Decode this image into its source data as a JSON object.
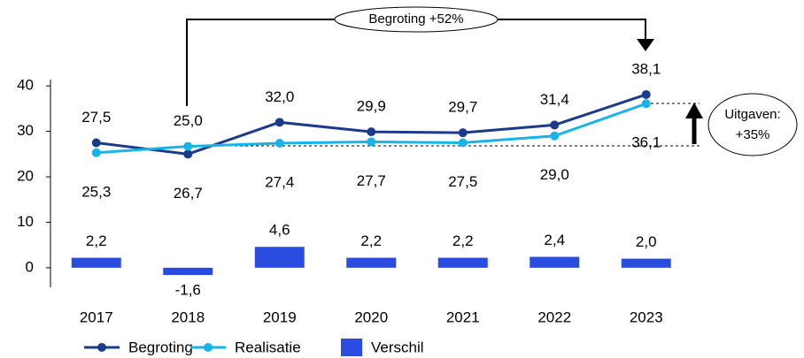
{
  "chart_data": {
    "type": "line-bar",
    "categories": [
      "2017",
      "2018",
      "2019",
      "2020",
      "2021",
      "2022",
      "2023"
    ],
    "series": [
      {
        "name": "Begroting",
        "color": "#1c3a8c",
        "kind": "line",
        "values": [
          27.5,
          25.0,
          32.0,
          29.9,
          29.7,
          31.4,
          38.1
        ],
        "value_labels": [
          "27,5",
          "25,0",
          "32,0",
          "29,9",
          "29,7",
          "31,4",
          "38,1"
        ]
      },
      {
        "name": "Realisatie",
        "color": "#16b4ea",
        "kind": "line",
        "values": [
          25.3,
          26.7,
          27.4,
          27.7,
          27.5,
          29.0,
          36.1
        ],
        "value_labels": [
          "25,3",
          "26,7",
          "27,4",
          "27,7",
          "27,5",
          "29,0",
          "36,1"
        ]
      },
      {
        "name": "Verschil",
        "color": "#2b4ce0",
        "kind": "bar",
        "values": [
          2.2,
          -1.6,
          4.6,
          2.2,
          2.2,
          2.4,
          2.0
        ],
        "value_labels": [
          "2,2",
          "-1,6",
          "4,6",
          "2,2",
          "2,2",
          "2,4",
          "2,0"
        ]
      }
    ],
    "ylim": [
      -4.3,
      41.4
    ],
    "yticks": [
      0,
      10,
      20,
      30,
      40
    ],
    "annotations": [
      "Begroting +52%",
      [
        "Uitgaven:",
        "+35%"
      ]
    ]
  }
}
